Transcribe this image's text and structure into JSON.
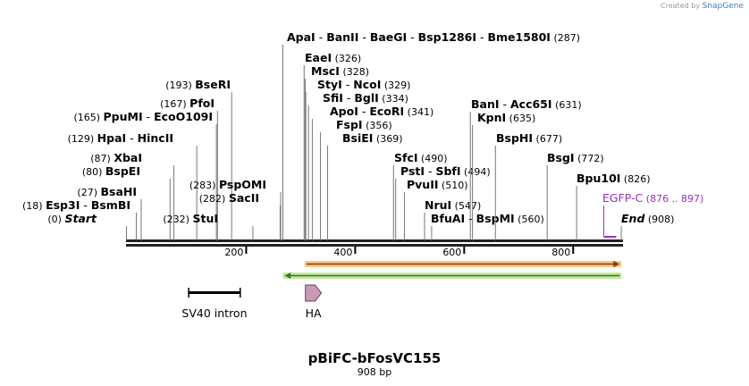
{
  "app": {
    "credit_prefix": "Created by",
    "credit_brand": "SnapGene"
  },
  "map": {
    "name": "pBiFC-bFosVC155",
    "length_label": "908 bp",
    "ruler_ticks": [
      {
        "bp": 200,
        "label": "200"
      },
      {
        "bp": 400,
        "label": "400"
      },
      {
        "bp": 600,
        "label": "600"
      },
      {
        "bp": 800,
        "label": "800"
      }
    ],
    "site_labels": [
      {
        "parts": [
          [
            "(0)",
            "n"
          ],
          [
            "Start",
            "bi"
          ]
        ],
        "bp": 0
      },
      {
        "parts": [
          [
            "(18)",
            "n"
          ],
          [
            "Esp3I",
            "b"
          ],
          [
            " - ",
            "n"
          ],
          [
            "BsmBI",
            "b"
          ]
        ],
        "bp": 18
      },
      {
        "parts": [
          [
            "(27)",
            "n"
          ],
          [
            "BsaHI",
            "b"
          ]
        ],
        "bp": 27
      },
      {
        "parts": [
          [
            "(80)",
            "n"
          ],
          [
            "BspEI",
            "b"
          ]
        ],
        "bp": 80
      },
      {
        "parts": [
          [
            "(87)",
            "n"
          ],
          [
            "XbaI",
            "b"
          ]
        ],
        "bp": 87
      },
      {
        "parts": [
          [
            "(129)",
            "n"
          ],
          [
            "HpaI",
            "b"
          ],
          [
            " - ",
            "n"
          ],
          [
            "HincII",
            "b"
          ]
        ],
        "bp": 129
      },
      {
        "parts": [
          [
            "(165)",
            "n"
          ],
          [
            "PpuMI",
            "b"
          ],
          [
            " - ",
            "n"
          ],
          [
            "EcoO109I",
            "b"
          ]
        ],
        "bp": 165
      },
      {
        "parts": [
          [
            "(167)",
            "n"
          ],
          [
            "PfoI",
            "b"
          ]
        ],
        "bp": 167
      },
      {
        "parts": [
          [
            "(193)",
            "n"
          ],
          [
            "BseRI",
            "b"
          ]
        ],
        "bp": 193
      },
      {
        "parts": [
          [
            "(232)",
            "n"
          ],
          [
            "StuI",
            "b"
          ]
        ],
        "bp": 232
      },
      {
        "parts": [
          [
            "(282)",
            "n"
          ],
          [
            "SacII",
            "b"
          ]
        ],
        "bp": 282
      },
      {
        "parts": [
          [
            "(283)",
            "n"
          ],
          [
            "PspOMI",
            "b"
          ]
        ],
        "bp": 283
      },
      {
        "parts": [
          [
            "ApaI",
            "b"
          ],
          [
            " - ",
            "n"
          ],
          [
            "BanII",
            "b"
          ],
          [
            " - ",
            "n"
          ],
          [
            "BaeGI",
            "b"
          ],
          [
            " - ",
            "n"
          ],
          [
            "Bsp1286I",
            "b"
          ],
          [
            " - ",
            "n"
          ],
          [
            "Bme1580I",
            "b"
          ],
          [
            "(287)",
            "n"
          ]
        ],
        "bp": 287
      },
      {
        "parts": [
          [
            "EaeI",
            "b"
          ],
          [
            "(326)",
            "n"
          ]
        ],
        "bp": 326
      },
      {
        "parts": [
          [
            "MscI",
            "b"
          ],
          [
            "(328)",
            "n"
          ]
        ],
        "bp": 328
      },
      {
        "parts": [
          [
            "StyI",
            "b"
          ],
          [
            " - ",
            "n"
          ],
          [
            "NcoI",
            "b"
          ],
          [
            "(329)",
            "n"
          ]
        ],
        "bp": 329
      },
      {
        "parts": [
          [
            "SfiI",
            "b"
          ],
          [
            " - ",
            "n"
          ],
          [
            "BglI",
            "b"
          ],
          [
            "(334)",
            "n"
          ]
        ],
        "bp": 334
      },
      {
        "parts": [
          [
            "ApoI",
            "b"
          ],
          [
            " - ",
            "n"
          ],
          [
            "EcoRI",
            "b"
          ],
          [
            "(341)",
            "n"
          ]
        ],
        "bp": 341
      },
      {
        "parts": [
          [
            "FspI",
            "b"
          ],
          [
            "(356)",
            "n"
          ]
        ],
        "bp": 356
      },
      {
        "parts": [
          [
            "BsiEI",
            "b"
          ],
          [
            "(369)",
            "n"
          ]
        ],
        "bp": 369
      },
      {
        "parts": [
          [
            "SfcI",
            "b"
          ],
          [
            "(490)",
            "n"
          ]
        ],
        "bp": 490
      },
      {
        "parts": [
          [
            "PstI",
            "b"
          ],
          [
            " - ",
            "n"
          ],
          [
            "SbfI",
            "b"
          ],
          [
            "(494)",
            "n"
          ]
        ],
        "bp": 494
      },
      {
        "parts": [
          [
            "PvuII",
            "b"
          ],
          [
            "(510)",
            "n"
          ]
        ],
        "bp": 510
      },
      {
        "parts": [
          [
            "NruI",
            "b"
          ],
          [
            "(547)",
            "n"
          ]
        ],
        "bp": 547
      },
      {
        "parts": [
          [
            "BfuAI",
            "b"
          ],
          [
            " - ",
            "n"
          ],
          [
            "BspMI",
            "b"
          ],
          [
            "(560)",
            "n"
          ]
        ],
        "bp": 560
      },
      {
        "parts": [
          [
            "BanI",
            "b"
          ],
          [
            " - ",
            "n"
          ],
          [
            "Acc65I",
            "b"
          ],
          [
            "(631)",
            "n"
          ]
        ],
        "bp": 631
      },
      {
        "parts": [
          [
            "KpnI",
            "b"
          ],
          [
            "(635)",
            "n"
          ]
        ],
        "bp": 635
      },
      {
        "parts": [
          [
            "BspHI",
            "b"
          ],
          [
            "(677)",
            "n"
          ]
        ],
        "bp": 677
      },
      {
        "parts": [
          [
            "BsgI",
            "b"
          ],
          [
            "(772)",
            "n"
          ]
        ],
        "bp": 772
      },
      {
        "parts": [
          [
            "Bpu10I",
            "b"
          ],
          [
            "(826)",
            "n"
          ]
        ],
        "bp": 826
      },
      {
        "parts": [
          [
            "End",
            "bi"
          ],
          [
            "(908)",
            "n"
          ]
        ],
        "bp": 908
      }
    ],
    "primer_label": {
      "name": "EGFP-C",
      "range": "(876 .. 897)",
      "start": 876,
      "end": 897
    },
    "features": [
      {
        "label": "SV40 intron",
        "start": 113,
        "end": 210
      },
      {
        "label": "HA",
        "start": 330,
        "end": 356
      }
    ],
    "orf_forward": {
      "start": 330,
      "end": 905,
      "direction": "forward"
    },
    "orf_reverse": {
      "start": 290,
      "end": 905,
      "direction": "reverse"
    },
    "colors": {
      "backbone": "#222222",
      "site_line": "#777777",
      "primer": "#9b30c6",
      "orf_forward_fill": "#f6c889",
      "orf_forward_line": "#8a3a0a",
      "orf_reverse_fill": "#c3e79e",
      "orf_reverse_line": "#2f7d1f",
      "intron": "#000000",
      "ha_fill": "#c99ab5",
      "ha_stroke": "#6b3a55"
    }
  }
}
